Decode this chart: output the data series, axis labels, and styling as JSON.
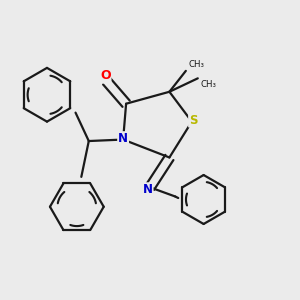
{
  "background_color": "#ebebeb",
  "atom_colors": {
    "C": "#000000",
    "N": "#0000cc",
    "O": "#ff0000",
    "S": "#b8b800"
  },
  "bond_color": "#1a1a1a",
  "line_width": 1.6,
  "figsize": [
    3.0,
    3.0
  ],
  "dpi": 100
}
